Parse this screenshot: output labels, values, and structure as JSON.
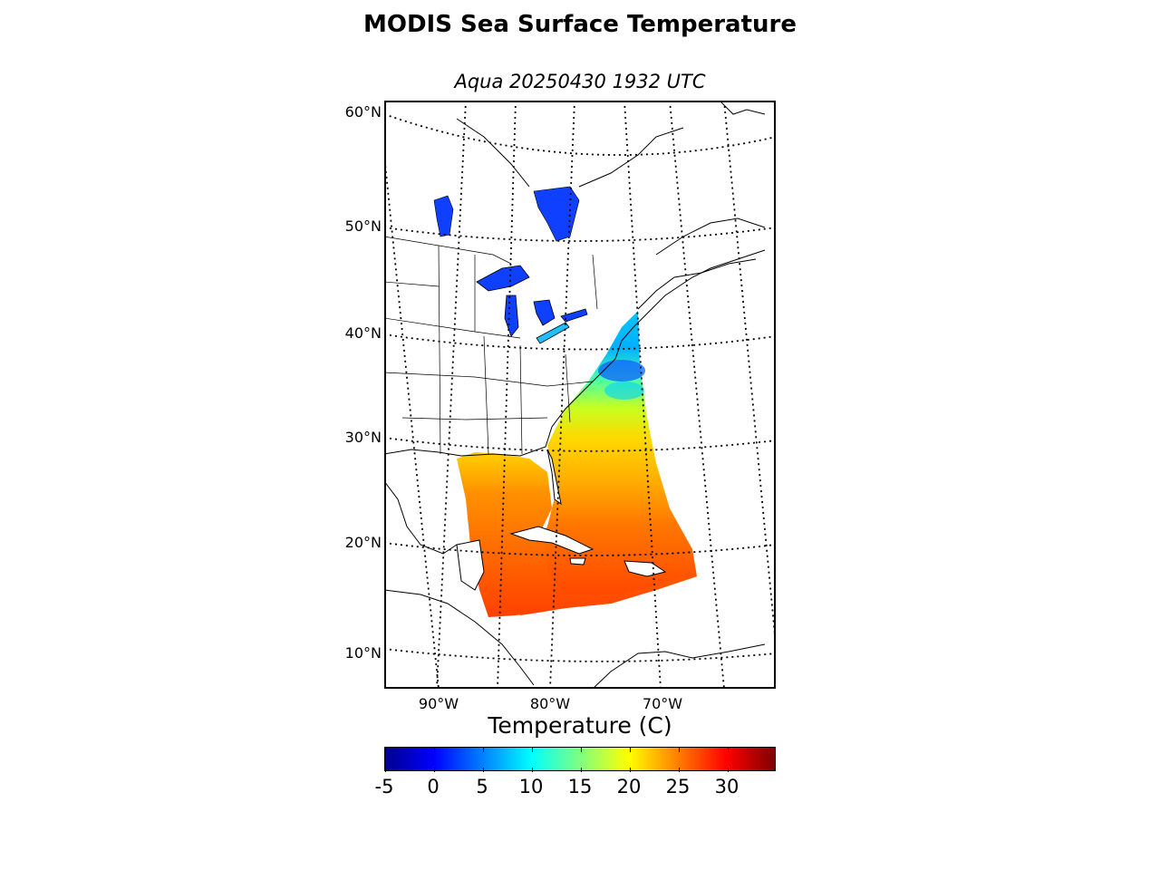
{
  "title": "MODIS Sea Surface Temperature",
  "subtitle": "Aqua 20250430 1932 UTC",
  "latitude_labels": [
    "60°N",
    "50°N",
    "40°N",
    "30°N",
    "20°N",
    "10°N"
  ],
  "longitude_labels": [
    "90°W",
    "80°W",
    "70°W"
  ],
  "colorbar": {
    "title": "Temperature (C)",
    "min": -5,
    "max": 35,
    "tick_values": [
      -5,
      0,
      5,
      10,
      15,
      20,
      25,
      30
    ],
    "tick_labels": [
      "-5",
      "0",
      "5",
      "10",
      "15",
      "20",
      "25",
      "30"
    ],
    "colormap": "jet"
  },
  "map": {
    "projection": "lambert-conformal",
    "graticule": "dotted",
    "land_color": "#ffffff",
    "coastline_color": "#000000"
  },
  "colors": {
    "cold": "#0000ff",
    "cool": "#00ffff",
    "mid": "#ffff00",
    "warm": "#ff8000",
    "hot": "#ff3000"
  }
}
